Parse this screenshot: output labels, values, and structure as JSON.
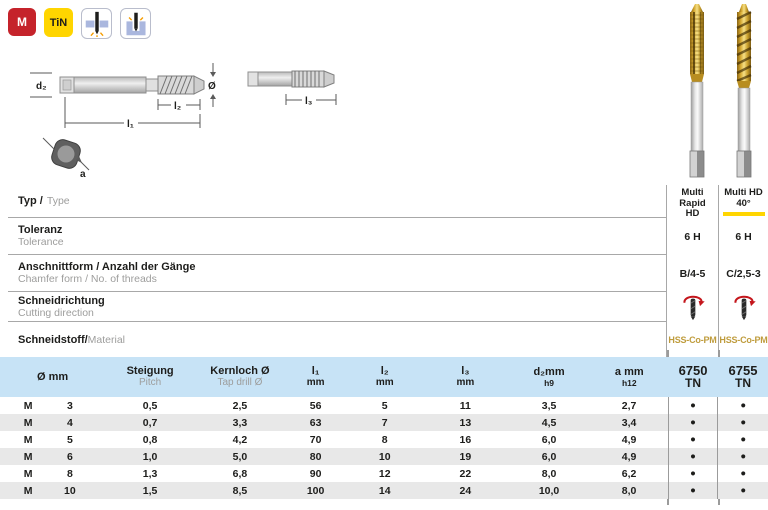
{
  "colors": {
    "accent_yellow": "#FFD500",
    "badge_red": "#C5232B",
    "badge_yellow": "#FFD500",
    "table_header_blue": "#C7E3F6",
    "row_alt_gray": "#E8E8E8",
    "gold_text": "#BF9C3D",
    "cutting_icon_red": "#C4161C"
  },
  "badges": {
    "metric": "M",
    "coating": "TiN"
  },
  "icons": {
    "through_hole": "through-hole-icon",
    "blind_hole": "blind-hole-icon",
    "cutting_direction": "right-hand-rotation-icon"
  },
  "drawing": {
    "d2": "d₂",
    "dia": "Ø",
    "l1": "l₁",
    "l2": "l₂",
    "l3": "l₃",
    "a": "a"
  },
  "products": [
    {
      "name_line1": "Multi Rapid",
      "name_line2": "HD"
    },
    {
      "name_line1": "Multi HD",
      "name_line2": "40°"
    }
  ],
  "specs": {
    "typ": {
      "de": "Typ /",
      "en": "Type"
    },
    "toleranz": {
      "de": "Toleranz",
      "en": "Tolerance",
      "values": [
        "6 H",
        "6 H"
      ]
    },
    "anschnittform": {
      "de": "Anschnittform / Anzahl der Gänge",
      "en": "Chamfer form / No. of threads",
      "values": [
        "B/4-5",
        "C/2,5-3"
      ]
    },
    "schneidrichtung": {
      "de": "Schneidrichtung",
      "en": "Cutting direction"
    },
    "schneidstoff": {
      "de": "Schneidstoff/",
      "en": "Material",
      "values": [
        "HSS-Co-PM",
        "HSS-Co-PM"
      ]
    }
  },
  "table": {
    "col_keys": [
      "thread",
      "size",
      "pitch",
      "tap_drill_dia",
      "l1",
      "l2",
      "l3",
      "d2",
      "a",
      "sku_6750_tn",
      "sku_6755_tn"
    ],
    "headers": [
      {
        "line1": "Ø mm",
        "line2": ""
      },
      {
        "line1": "Steigung",
        "line2": "Pitch"
      },
      {
        "line1": "Kernloch Ø",
        "line2": "Tap drill Ø"
      },
      {
        "line1": "l₁",
        "line2": "mm"
      },
      {
        "line1": "l₂",
        "line2": "mm"
      },
      {
        "line1": "l₃",
        "line2": "mm"
      },
      {
        "line1": "d₂mm",
        "line2": "h9"
      },
      {
        "line1": "a mm",
        "line2": "h12"
      },
      {
        "line1": "6750",
        "line2": "TN"
      },
      {
        "line1": "6755",
        "line2": "TN"
      }
    ],
    "rows": [
      {
        "cells": [
          "M",
          "3",
          "0,5",
          "2,5",
          "56",
          "5",
          "11",
          "3,5",
          "2,7",
          "●",
          "●"
        ]
      },
      {
        "cells": [
          "M",
          "4",
          "0,7",
          "3,3",
          "63",
          "7",
          "13",
          "4,5",
          "3,4",
          "●",
          "●"
        ]
      },
      {
        "cells": [
          "M",
          "5",
          "0,8",
          "4,2",
          "70",
          "8",
          "16",
          "6,0",
          "4,9",
          "●",
          "●"
        ]
      },
      {
        "cells": [
          "M",
          "6",
          "1,0",
          "5,0",
          "80",
          "10",
          "19",
          "6,0",
          "4,9",
          "●",
          "●"
        ]
      },
      {
        "cells": [
          "M",
          "8",
          "1,3",
          "6,8",
          "90",
          "12",
          "22",
          "8,0",
          "6,2",
          "●",
          "●"
        ]
      },
      {
        "cells": [
          "M",
          "10",
          "1,5",
          "8,5",
          "100",
          "14",
          "24",
          "10,0",
          "8,0",
          "●",
          "●"
        ]
      }
    ]
  }
}
